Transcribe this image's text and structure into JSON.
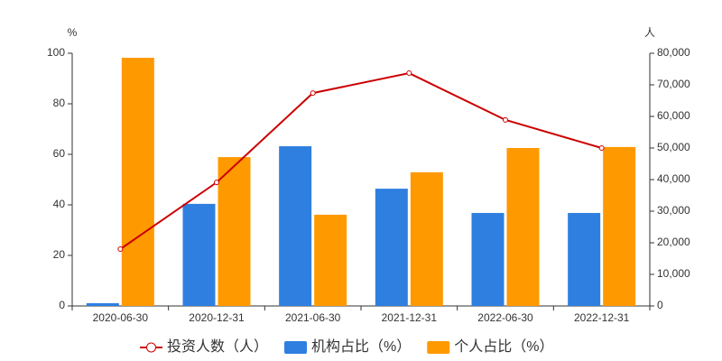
{
  "chart_data": {
    "type": "bar-line",
    "y_label": "%",
    "y2_label": "人",
    "categories": [
      "2020-06-30",
      "2020-12-31",
      "2021-06-30",
      "2021-12-31",
      "2022-06-30",
      "2022-12-31"
    ],
    "series": [
      {
        "name": "投资人数（人）",
        "type": "line",
        "axis": "y2",
        "color": "#cc0000",
        "values": [
          18000,
          39100,
          67400,
          73700,
          58900,
          50000
        ]
      },
      {
        "name": "机构占比（%）",
        "type": "bar",
        "color": "#2e7fe0",
        "values": [
          1.1,
          40.4,
          63.2,
          46.4,
          36.8,
          36.8
        ]
      },
      {
        "name": "个人占比（%）",
        "type": "bar",
        "color": "#ff9900",
        "values": [
          98.2,
          58.9,
          36.1,
          52.9,
          62.5,
          62.9
        ]
      }
    ],
    "ylim": [
      0,
      100
    ],
    "yticks": [
      0,
      20,
      40,
      60,
      80,
      100
    ],
    "y2lim": [
      0,
      80000
    ],
    "y2ticks": [
      0,
      {
        "value": 10000,
        "label": "10,000"
      },
      {
        "value": 20000,
        "label": "20,000"
      },
      {
        "value": 30000,
        "label": "30,000"
      },
      {
        "value": 40000,
        "label": "40,000"
      },
      {
        "value": 50000,
        "label": "50,000"
      },
      {
        "value": 60000,
        "label": "60,000"
      },
      {
        "value": 70000,
        "label": "70,000"
      },
      {
        "value": 80000,
        "label": "80,000"
      }
    ],
    "grid": false
  }
}
